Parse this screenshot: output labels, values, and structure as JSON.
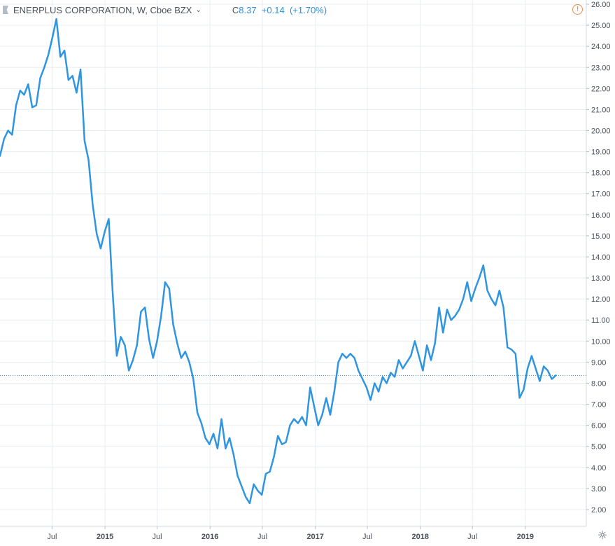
{
  "header": {
    "symbol_title": "ENERPLUS CORPORATION, W, Cboe BZX",
    "price_label": "C",
    "price": "8.37",
    "change": "+0.14",
    "change_pct": "(+1.70%)",
    "chevron": "⌄"
  },
  "icons": {
    "flag": "flag-icon",
    "alert": "!",
    "settings": "☼"
  },
  "colors": {
    "line": "#2f95e0",
    "grid": "#e9edf2",
    "axis_text": "#4a4f5a",
    "current_price_line": "#2a8fa0",
    "alert_icon": "#f08a4b"
  },
  "chart_data": {
    "type": "line",
    "title": "ENERPLUS CORPORATION, W, Cboe BZX",
    "xlabel": "",
    "ylabel": "",
    "grid": true,
    "ylim": [
      1.2,
      26.2
    ],
    "y_ticks": [
      "2.00",
      "3.00",
      "4.00",
      "5.00",
      "6.00",
      "7.00",
      "8.00",
      "9.00",
      "10.00",
      "11.00",
      "12.00",
      "13.00",
      "14.00",
      "15.00",
      "16.00",
      "17.00",
      "18.00",
      "19.00",
      "20.00",
      "21.00",
      "22.00",
      "23.00",
      "24.00",
      "25.00",
      "26.00"
    ],
    "x_ticks": [
      {
        "label": "Jul",
        "date": "2014-07-01"
      },
      {
        "label": "2015",
        "date": "2015-01-01"
      },
      {
        "label": "Jul",
        "date": "2015-07-01"
      },
      {
        "label": "2016",
        "date": "2016-01-01"
      },
      {
        "label": "Jul",
        "date": "2016-07-01"
      },
      {
        "label": "2017",
        "date": "2017-01-01"
      },
      {
        "label": "Jul",
        "date": "2017-07-01"
      },
      {
        "label": "2018",
        "date": "2018-01-01"
      },
      {
        "label": "Jul",
        "date": "2018-07-01"
      },
      {
        "label": "2019",
        "date": "2019-01-01"
      }
    ],
    "x_range": [
      "2014-01-01",
      "2019-08-01"
    ],
    "current_price": 8.37,
    "series": [
      {
        "values": [
          [
            "2014-01-01",
            18.8
          ],
          [
            "2014-01-15",
            19.6
          ],
          [
            "2014-01-29",
            20.0
          ],
          [
            "2014-02-12",
            19.8
          ],
          [
            "2014-02-26",
            21.2
          ],
          [
            "2014-03-12",
            21.9
          ],
          [
            "2014-03-26",
            21.7
          ],
          [
            "2014-04-09",
            22.2
          ],
          [
            "2014-04-23",
            21.1
          ],
          [
            "2014-05-07",
            21.2
          ],
          [
            "2014-05-21",
            22.5
          ],
          [
            "2014-06-04",
            23.0
          ],
          [
            "2014-06-18",
            23.6
          ],
          [
            "2014-07-02",
            24.4
          ],
          [
            "2014-07-16",
            25.3
          ],
          [
            "2014-07-30",
            23.5
          ],
          [
            "2014-08-13",
            23.8
          ],
          [
            "2014-08-27",
            22.4
          ],
          [
            "2014-09-10",
            22.6
          ],
          [
            "2014-09-24",
            21.8
          ],
          [
            "2014-10-08",
            22.9
          ],
          [
            "2014-10-22",
            19.5
          ],
          [
            "2014-11-05",
            18.6
          ],
          [
            "2014-11-19",
            16.5
          ],
          [
            "2014-12-03",
            15.1
          ],
          [
            "2014-12-17",
            14.4
          ],
          [
            "2014-12-31",
            15.2
          ],
          [
            "2015-01-14",
            15.8
          ],
          [
            "2015-01-28",
            12.2
          ],
          [
            "2015-02-11",
            9.3
          ],
          [
            "2015-02-25",
            10.2
          ],
          [
            "2015-03-11",
            9.8
          ],
          [
            "2015-03-25",
            8.6
          ],
          [
            "2015-04-08",
            9.1
          ],
          [
            "2015-04-22",
            9.8
          ],
          [
            "2015-05-06",
            11.4
          ],
          [
            "2015-05-20",
            11.6
          ],
          [
            "2015-06-03",
            10.1
          ],
          [
            "2015-06-17",
            9.2
          ],
          [
            "2015-07-01",
            10.0
          ],
          [
            "2015-07-15",
            11.2
          ],
          [
            "2015-07-29",
            12.8
          ],
          [
            "2015-08-12",
            12.5
          ],
          [
            "2015-08-26",
            10.8
          ],
          [
            "2015-09-09",
            9.9
          ],
          [
            "2015-09-23",
            9.2
          ],
          [
            "2015-10-07",
            9.5
          ],
          [
            "2015-10-21",
            9.0
          ],
          [
            "2015-11-04",
            8.2
          ],
          [
            "2015-11-18",
            6.6
          ],
          [
            "2015-12-02",
            6.1
          ],
          [
            "2015-12-16",
            5.4
          ],
          [
            "2015-12-30",
            5.1
          ],
          [
            "2016-01-13",
            5.6
          ],
          [
            "2016-01-27",
            4.9
          ],
          [
            "2016-02-10",
            6.3
          ],
          [
            "2016-02-24",
            4.9
          ],
          [
            "2016-03-09",
            5.4
          ],
          [
            "2016-03-23",
            4.6
          ],
          [
            "2016-04-06",
            3.6
          ],
          [
            "2016-04-20",
            3.1
          ],
          [
            "2016-05-04",
            2.6
          ],
          [
            "2016-05-18",
            2.3
          ],
          [
            "2016-06-01",
            3.2
          ],
          [
            "2016-06-15",
            2.9
          ],
          [
            "2016-06-29",
            2.7
          ],
          [
            "2016-07-13",
            3.7
          ],
          [
            "2016-07-27",
            3.8
          ],
          [
            "2016-08-10",
            4.5
          ],
          [
            "2016-08-24",
            5.5
          ],
          [
            "2016-09-07",
            5.1
          ],
          [
            "2016-09-21",
            5.2
          ],
          [
            "2016-10-05",
            6.0
          ],
          [
            "2016-10-19",
            6.3
          ],
          [
            "2016-11-02",
            6.1
          ],
          [
            "2016-11-16",
            6.4
          ],
          [
            "2016-11-30",
            6.0
          ],
          [
            "2016-12-14",
            7.8
          ],
          [
            "2016-12-28",
            6.9
          ],
          [
            "2017-01-11",
            6.0
          ],
          [
            "2017-01-25",
            6.5
          ],
          [
            "2017-02-08",
            7.3
          ],
          [
            "2017-02-22",
            6.5
          ],
          [
            "2017-03-08",
            7.6
          ],
          [
            "2017-03-22",
            9.0
          ],
          [
            "2017-04-05",
            9.4
          ],
          [
            "2017-04-19",
            9.2
          ],
          [
            "2017-05-03",
            9.4
          ],
          [
            "2017-05-17",
            9.2
          ],
          [
            "2017-05-31",
            8.6
          ],
          [
            "2017-06-14",
            8.2
          ],
          [
            "2017-06-28",
            7.8
          ],
          [
            "2017-07-12",
            7.2
          ],
          [
            "2017-07-26",
            8.0
          ],
          [
            "2017-08-09",
            7.6
          ],
          [
            "2017-08-23",
            8.3
          ],
          [
            "2017-09-06",
            8.0
          ],
          [
            "2017-09-20",
            8.5
          ],
          [
            "2017-10-04",
            8.3
          ],
          [
            "2017-10-18",
            9.1
          ],
          [
            "2017-11-01",
            8.7
          ],
          [
            "2017-11-15",
            9.0
          ],
          [
            "2017-11-29",
            9.3
          ],
          [
            "2017-12-13",
            10.0
          ],
          [
            "2017-12-27",
            9.3
          ],
          [
            "2018-01-10",
            8.6
          ],
          [
            "2018-01-24",
            9.8
          ],
          [
            "2018-02-07",
            9.1
          ],
          [
            "2018-02-21",
            9.9
          ],
          [
            "2018-03-07",
            11.6
          ],
          [
            "2018-03-21",
            10.4
          ],
          [
            "2018-04-04",
            11.5
          ],
          [
            "2018-04-18",
            11.0
          ],
          [
            "2018-05-02",
            11.2
          ],
          [
            "2018-05-16",
            11.5
          ],
          [
            "2018-05-30",
            12.0
          ],
          [
            "2018-06-13",
            12.8
          ],
          [
            "2018-06-27",
            11.9
          ],
          [
            "2018-07-11",
            12.5
          ],
          [
            "2018-07-25",
            13.0
          ],
          [
            "2018-08-08",
            13.6
          ],
          [
            "2018-08-22",
            12.4
          ],
          [
            "2018-09-05",
            12.0
          ],
          [
            "2018-09-19",
            11.7
          ],
          [
            "2018-10-03",
            12.4
          ],
          [
            "2018-10-17",
            11.6
          ],
          [
            "2018-10-31",
            9.7
          ],
          [
            "2018-11-14",
            9.6
          ],
          [
            "2018-11-28",
            9.4
          ],
          [
            "2018-12-12",
            7.3
          ],
          [
            "2018-12-26",
            7.7
          ],
          [
            "2019-01-09",
            8.7
          ],
          [
            "2019-01-23",
            9.3
          ],
          [
            "2019-02-06",
            8.7
          ],
          [
            "2019-02-20",
            8.1
          ],
          [
            "2019-03-06",
            8.8
          ],
          [
            "2019-03-20",
            8.6
          ],
          [
            "2019-04-03",
            8.2
          ],
          [
            "2019-04-17",
            8.37
          ]
        ]
      }
    ]
  }
}
